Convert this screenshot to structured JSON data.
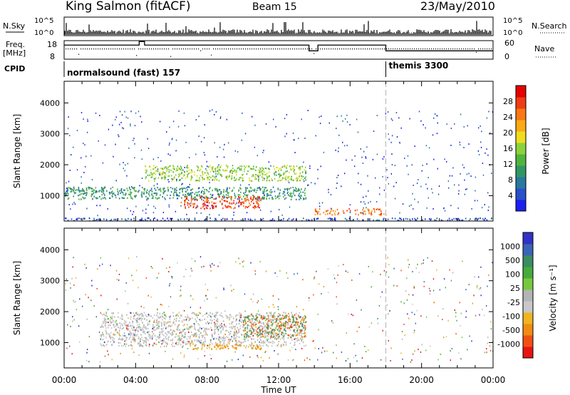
{
  "header": {
    "station": "King Salmon (fitACF)",
    "beam": "Beam 15",
    "date": "23/May/2010"
  },
  "left_labels": {
    "nsky": "N.Sky",
    "freq": "Freq.",
    "freq_unit": "[MHz]",
    "cpid": "CPID"
  },
  "right_labels": {
    "nsearch": "N.Search",
    "nave": "Nave"
  },
  "strip_ticks": {
    "noise_left": [
      "10^5",
      "10^0"
    ],
    "noise_right": [
      "10^5",
      "10^0"
    ],
    "freq_left": [
      "18",
      "8"
    ],
    "nave_right": [
      "60",
      "0"
    ]
  },
  "cpid": {
    "program_1": "normalsound (fast) 157",
    "program_2": "themis 3300",
    "switch_hour": 18.0
  },
  "colors": {
    "power_scale": [
      "#1e1ef0",
      "#2850c8",
      "#2878a0",
      "#329664",
      "#50b43c",
      "#8cd23c",
      "#f0dc1e",
      "#faaa14",
      "#fa7814",
      "#f03c14",
      "#e60000"
    ],
    "velocity_scale": [
      "#3232c8",
      "#3c64b4",
      "#3c8c64",
      "#46aa3c",
      "#78c83c",
      "#b4b4b4",
      "#c8c8c8",
      "#f0b41e",
      "#f08c14",
      "#f05014",
      "#e61414"
    ]
  },
  "chart_data": [
    {
      "type": "heatmap",
      "title": "Power",
      "ylabel": "Slant Range [km]",
      "ylim": [
        180,
        4700
      ],
      "yticks": [
        "1000",
        "2000",
        "3000",
        "4000"
      ],
      "xlim": [
        0,
        24
      ],
      "colorbar_label": "Power [dB]",
      "colorbar_ticks": [
        "4",
        "8",
        "12",
        "16",
        "20",
        "24",
        "28"
      ],
      "features": [
        {
          "range_km": [
            200,
            300
          ],
          "hours": [
            0,
            24
          ],
          "level": "low"
        },
        {
          "range_km": [
            900,
            1300
          ],
          "hours": [
            0,
            13.5
          ],
          "level": "low-medium"
        },
        {
          "range_km": [
            600,
            1000
          ],
          "hours": [
            6.5,
            11
          ],
          "level": "high"
        },
        {
          "range_km": [
            1500,
            2000
          ],
          "hours": [
            4.5,
            13.5
          ],
          "level": "medium"
        },
        {
          "range_km": [
            400,
            600
          ],
          "hours": [
            14,
            18
          ],
          "level": "medium-high"
        }
      ]
    },
    {
      "type": "heatmap",
      "title": "Velocity",
      "ylabel": "Slant Range [km]",
      "ylim": [
        180,
        4700
      ],
      "yticks": [
        "1000",
        "2000",
        "3000",
        "4000"
      ],
      "xlim": [
        0,
        24
      ],
      "xticks": [
        "00:00",
        "04:00",
        "08:00",
        "12:00",
        "16:00",
        "20:00",
        "00:00"
      ],
      "xlabel": "Time UT",
      "colorbar_label": "Velocity [m s⁻¹]",
      "colorbar_ticks": [
        "1000",
        "500",
        "100",
        "25",
        "-25",
        "-100",
        "-500",
        "-1000"
      ],
      "features": [
        {
          "range_km": [
            900,
            2000
          ],
          "hours": [
            2,
            13.5
          ],
          "velocity": "near zero"
        },
        {
          "range_km": [
            800,
            1000
          ],
          "hours": [
            7,
            11
          ],
          "velocity": "-100 to -500"
        },
        {
          "range_km": [
            1200,
            1900
          ],
          "hours": [
            10,
            13.5
          ],
          "velocity": "mixed positive/negative"
        }
      ]
    }
  ]
}
